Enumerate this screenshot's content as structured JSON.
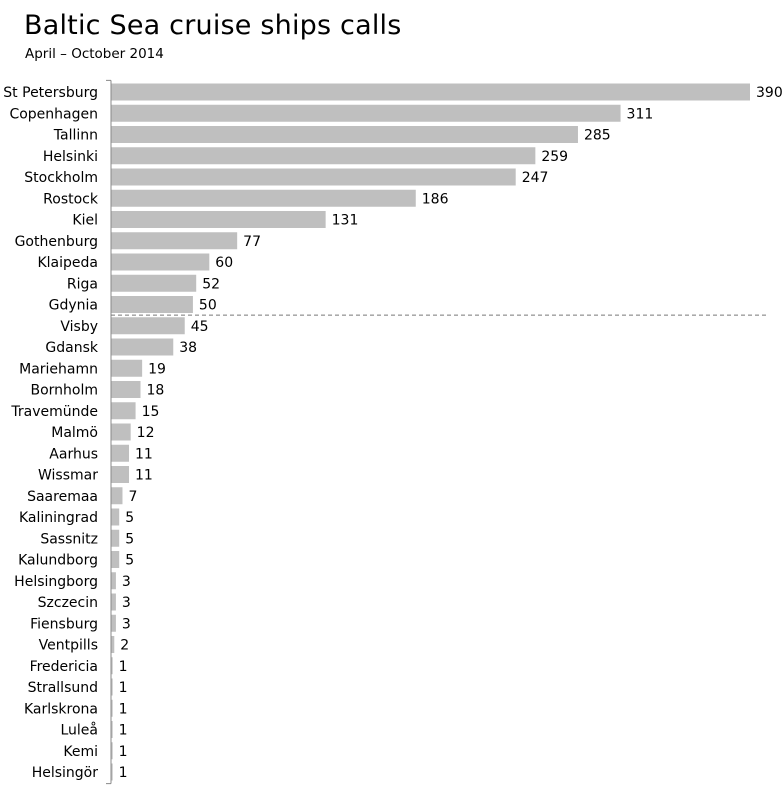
{
  "chart_data": {
    "type": "bar",
    "orientation": "horizontal",
    "title": "Baltic Sea cruise ships calls",
    "subtitle": "April – October 2014",
    "categories": [
      "St Petersburg",
      "Copenhagen",
      "Tallinn",
      "Helsinki",
      "Stockholm",
      "Rostock",
      "Kiel",
      "Gothenburg",
      "Klaipeda",
      "Riga",
      "Gdynia",
      "Visby",
      "Gdansk",
      "Mariehamn",
      "Bornholm",
      "Travemünde",
      "Malmö",
      "Aarhus",
      "Wissmar",
      "Saaremaa",
      "Kaliningrad",
      "Sassnitz",
      "Kalundborg",
      "Helsingborg",
      "Szczecin",
      "Fiensburg",
      "Ventpills",
      "Fredericia",
      "Strallsund",
      "Karlskrona",
      "Luleå",
      "Kemi",
      "Helsingör"
    ],
    "values": [
      390,
      311,
      285,
      259,
      247,
      186,
      131,
      77,
      60,
      52,
      50,
      45,
      38,
      19,
      18,
      15,
      12,
      11,
      11,
      7,
      5,
      5,
      5,
      3,
      3,
      3,
      2,
      1,
      1,
      1,
      1,
      1,
      1
    ],
    "value_labels": [
      "390",
      "311",
      "285",
      "259",
      "247",
      "186",
      "131",
      "77",
      "60",
      "52",
      "50",
      "45",
      "38",
      "19",
      "18",
      "15",
      "12",
      "11",
      "11",
      "7",
      "5",
      "5",
      "5",
      "3",
      "3",
      "3",
      "2",
      "1",
      "1",
      "1",
      "1",
      "1",
      "1"
    ],
    "xlim": [
      0,
      390
    ],
    "bar_color": "#bfbfbf",
    "divider_after_category": "Gdynia",
    "divider_style": "dashed",
    "grid": false,
    "legend": "none"
  }
}
